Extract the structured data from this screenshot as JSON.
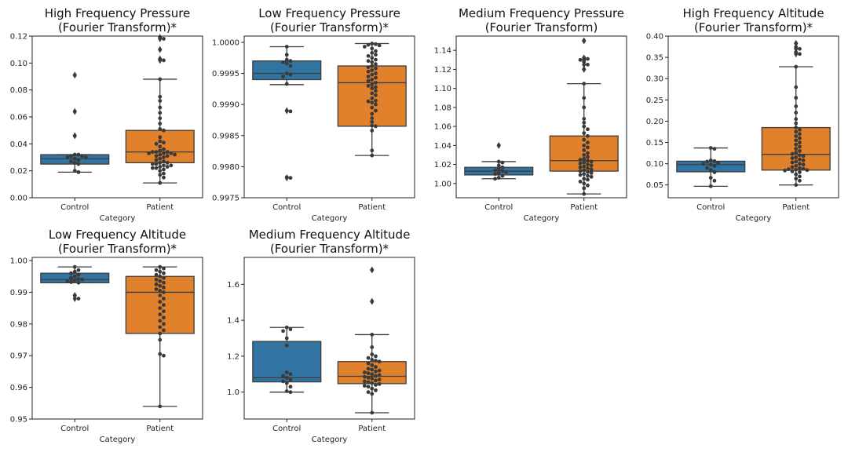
{
  "figure": {
    "background": "#ffffff"
  },
  "colors": {
    "Control": "#3274a1",
    "Patient": "#e1812c",
    "points": "#3a3a3a",
    "lines": "#3d3d3d"
  },
  "chart_data": [
    {
      "type": "box",
      "title_line1": "High Frequency Pressure",
      "title_line2": "(Fourier Transform)*",
      "xlabel": "Category",
      "ylabel": "",
      "categories": [
        "Control",
        "Patient"
      ],
      "ylim": [
        0.0,
        0.12
      ],
      "yticks": [
        "0.00",
        "0.02",
        "0.04",
        "0.06",
        "0.08",
        "0.10",
        "0.12"
      ],
      "boxes": [
        {
          "category": "Control",
          "whislo": 0.019,
          "q1": 0.025,
          "med": 0.029,
          "q3": 0.032,
          "whishi": 0.032,
          "fliers": [
            0.046,
            0.064,
            0.091
          ]
        },
        {
          "category": "Patient",
          "whislo": 0.011,
          "q1": 0.026,
          "med": 0.034,
          "q3": 0.05,
          "whishi": 0.088,
          "fliers": [
            0.102,
            0.103,
            0.11,
            0.118,
            0.119
          ]
        }
      ],
      "points": {
        "Control": [
          0.019,
          0.02,
          0.025,
          0.026,
          0.027,
          0.028,
          0.029,
          0.03,
          0.03,
          0.031,
          0.031,
          0.032,
          0.032,
          0.046,
          0.064,
          0.091
        ],
        "Patient": [
          0.011,
          0.015,
          0.017,
          0.018,
          0.02,
          0.021,
          0.022,
          0.022,
          0.023,
          0.023,
          0.024,
          0.024,
          0.025,
          0.025,
          0.026,
          0.026,
          0.027,
          0.028,
          0.029,
          0.03,
          0.031,
          0.031,
          0.032,
          0.032,
          0.033,
          0.033,
          0.033,
          0.034,
          0.034,
          0.034,
          0.035,
          0.036,
          0.038,
          0.04,
          0.041,
          0.042,
          0.045,
          0.05,
          0.051,
          0.055,
          0.059,
          0.063,
          0.067,
          0.072,
          0.075,
          0.088,
          0.102,
          0.103,
          0.11,
          0.118,
          0.119
        ]
      }
    },
    {
      "type": "box",
      "title_line1": "Low Frequency Pressure",
      "title_line2": "(Fourier Transform)*",
      "xlabel": "Category",
      "ylabel": "",
      "categories": [
        "Control",
        "Patient"
      ],
      "ylim": [
        0.9975,
        1.0001
      ],
      "yticks": [
        "0.9975",
        "0.9980",
        "0.9985",
        "0.9990",
        "0.9995",
        "1.0000"
      ],
      "boxes": [
        {
          "category": "Control",
          "whislo": 0.99932,
          "q1": 0.9994,
          "med": 0.9995,
          "q3": 0.9997,
          "whishi": 0.99993,
          "fliers": [
            0.9989,
            0.99782
          ]
        },
        {
          "category": "Patient",
          "whislo": 0.99818,
          "q1": 0.99865,
          "med": 0.99935,
          "q3": 0.99962,
          "whishi": 0.99998,
          "fliers": []
        }
      ],
      "points": {
        "Control": [
          0.99782,
          0.99783,
          0.99889,
          0.9989,
          0.99933,
          0.99945,
          0.99948,
          0.9995,
          0.99962,
          0.99966,
          0.99968,
          0.9997,
          0.99972,
          0.9998,
          0.99993
        ],
        "Patient": [
          0.99818,
          0.99826,
          0.99858,
          0.99865,
          0.99866,
          0.99872,
          0.99878,
          0.99885,
          0.9989,
          0.99895,
          0.999,
          0.99903,
          0.99905,
          0.99906,
          0.9991,
          0.99915,
          0.99918,
          0.99922,
          0.99926,
          0.99928,
          0.9993,
          0.99932,
          0.99935,
          0.99938,
          0.9994,
          0.99943,
          0.99945,
          0.99948,
          0.9995,
          0.99953,
          0.99955,
          0.99958,
          0.9996,
          0.99962,
          0.99965,
          0.99968,
          0.9997,
          0.99972,
          0.99975,
          0.99978,
          0.9998,
          0.99983,
          0.99986,
          0.9999,
          0.99993,
          0.99995,
          0.99996,
          0.99997,
          0.99998
        ]
      }
    },
    {
      "type": "box",
      "title_line1": "Medium Frequency Pressure",
      "title_line2": "(Fourier Transform)",
      "xlabel": "Category",
      "ylabel": "",
      "categories": [
        "Control",
        "Patient"
      ],
      "ylim": [
        0.985,
        1.155
      ],
      "yticks": [
        "1.00",
        "1.02",
        "1.04",
        "1.06",
        "1.08",
        "1.10",
        "1.12",
        "1.14"
      ],
      "boxes": [
        {
          "category": "Control",
          "whislo": 1.005,
          "q1": 1.009,
          "med": 1.013,
          "q3": 1.017,
          "whishi": 1.023,
          "fliers": [
            1.04
          ]
        },
        {
          "category": "Patient",
          "whislo": 0.989,
          "q1": 1.013,
          "med": 1.024,
          "q3": 1.05,
          "whishi": 1.105,
          "fliers": [
            1.12,
            1.125,
            1.128,
            1.13,
            1.131,
            1.132,
            1.15
          ]
        }
      ],
      "points": {
        "Control": [
          1.005,
          1.006,
          1.008,
          1.01,
          1.011,
          1.012,
          1.013,
          1.014,
          1.015,
          1.017,
          1.019,
          1.022,
          1.023,
          1.04
        ],
        "Patient": [
          0.989,
          0.995,
          0.998,
          1.0,
          1.002,
          1.004,
          1.005,
          1.007,
          1.008,
          1.009,
          1.01,
          1.011,
          1.012,
          1.013,
          1.014,
          1.015,
          1.016,
          1.017,
          1.018,
          1.019,
          1.02,
          1.021,
          1.022,
          1.023,
          1.024,
          1.025,
          1.026,
          1.028,
          1.03,
          1.032,
          1.035,
          1.038,
          1.04,
          1.043,
          1.046,
          1.05,
          1.053,
          1.057,
          1.06,
          1.064,
          1.068,
          1.08,
          1.09,
          1.105,
          1.12,
          1.125,
          1.128,
          1.13,
          1.131,
          1.132,
          1.15
        ]
      }
    },
    {
      "type": "box",
      "title_line1": "High Frequency Altitude",
      "title_line2": "(Fourier Transform)*",
      "xlabel": "Category",
      "ylabel": "",
      "categories": [
        "Control",
        "Patient"
      ],
      "ylim": [
        0.02,
        0.4
      ],
      "yticks": [
        "0.05",
        "0.10",
        "0.15",
        "0.20",
        "0.25",
        "0.30",
        "0.35",
        "0.40"
      ],
      "boxes": [
        {
          "category": "Control",
          "whislo": 0.047,
          "q1": 0.081,
          "med": 0.098,
          "q3": 0.106,
          "whishi": 0.137,
          "fliers": []
        },
        {
          "category": "Patient",
          "whislo": 0.05,
          "q1": 0.085,
          "med": 0.122,
          "q3": 0.185,
          "whishi": 0.328,
          "fliers": [
            0.358,
            0.362,
            0.37,
            0.374,
            0.383
          ]
        }
      ],
      "points": {
        "Control": [
          0.047,
          0.06,
          0.067,
          0.08,
          0.085,
          0.09,
          0.095,
          0.098,
          0.1,
          0.102,
          0.105,
          0.106,
          0.108,
          0.135,
          0.137
        ],
        "Patient": [
          0.05,
          0.06,
          0.065,
          0.07,
          0.075,
          0.08,
          0.082,
          0.084,
          0.085,
          0.086,
          0.087,
          0.088,
          0.09,
          0.092,
          0.095,
          0.098,
          0.1,
          0.103,
          0.105,
          0.108,
          0.11,
          0.113,
          0.115,
          0.118,
          0.12,
          0.123,
          0.126,
          0.13,
          0.135,
          0.14,
          0.145,
          0.15,
          0.155,
          0.16,
          0.165,
          0.17,
          0.175,
          0.18,
          0.185,
          0.195,
          0.205,
          0.22,
          0.235,
          0.255,
          0.28,
          0.328,
          0.358,
          0.362,
          0.37,
          0.374,
          0.383
        ]
      }
    },
    {
      "type": "box",
      "title_line1": "Low Frequency Altitude",
      "title_line2": "(Fourier Transform)*",
      "xlabel": "Category",
      "ylabel": "",
      "categories": [
        "Control",
        "Patient"
      ],
      "ylim": [
        0.95,
        1.001
      ],
      "yticks": [
        "0.95",
        "0.96",
        "0.97",
        "0.98",
        "0.99",
        "1.00"
      ],
      "boxes": [
        {
          "category": "Control",
          "whislo": 0.993,
          "q1": 0.993,
          "med": 0.994,
          "q3": 0.996,
          "whishi": 0.998,
          "fliers": [
            0.989,
            0.988
          ]
        },
        {
          "category": "Patient",
          "whislo": 0.954,
          "q1": 0.977,
          "med": 0.99,
          "q3": 0.995,
          "whishi": 0.998,
          "fliers": []
        }
      ],
      "points": {
        "Control": [
          0.988,
          0.989,
          0.993,
          0.9932,
          0.9935,
          0.9938,
          0.994,
          0.9942,
          0.9945,
          0.995,
          0.9955,
          0.996,
          0.9965,
          0.997,
          0.998
        ],
        "Patient": [
          0.954,
          0.97,
          0.9705,
          0.975,
          0.977,
          0.978,
          0.979,
          0.98,
          0.981,
          0.982,
          0.983,
          0.984,
          0.985,
          0.986,
          0.987,
          0.988,
          0.989,
          0.99,
          0.9905,
          0.991,
          0.9915,
          0.992,
          0.9925,
          0.993,
          0.9935,
          0.994,
          0.9945,
          0.995,
          0.9955,
          0.996,
          0.9965,
          0.997,
          0.9975,
          0.998
        ]
      }
    },
    {
      "type": "box",
      "title_line1": "Medium Frequency Altitude",
      "title_line2": "(Fourier Transform)*",
      "xlabel": "Category",
      "ylabel": "",
      "categories": [
        "Control",
        "Patient"
      ],
      "ylim": [
        0.85,
        1.75
      ],
      "yticks": [
        "1.0",
        "1.2",
        "1.4",
        "1.6"
      ],
      "boxes": [
        {
          "category": "Control",
          "whislo": 1.0,
          "q1": 1.057,
          "med": 1.08,
          "q3": 1.282,
          "whishi": 1.36,
          "fliers": []
        },
        {
          "category": "Patient",
          "whislo": 0.885,
          "q1": 1.047,
          "med": 1.088,
          "q3": 1.17,
          "whishi": 1.32,
          "fliers": [
            1.505,
            1.68
          ]
        }
      ],
      "points": {
        "Control": [
          1.0,
          1.005,
          1.03,
          1.05,
          1.06,
          1.07,
          1.08,
          1.09,
          1.1,
          1.11,
          1.26,
          1.3,
          1.34,
          1.35,
          1.36
        ],
        "Patient": [
          0.885,
          0.99,
          1.0,
          1.01,
          1.02,
          1.03,
          1.035,
          1.04,
          1.045,
          1.05,
          1.055,
          1.06,
          1.065,
          1.07,
          1.075,
          1.08,
          1.085,
          1.09,
          1.095,
          1.1,
          1.105,
          1.11,
          1.115,
          1.12,
          1.125,
          1.13,
          1.14,
          1.15,
          1.16,
          1.17,
          1.175,
          1.18,
          1.19,
          1.2,
          1.21,
          1.25,
          1.32,
          1.505,
          1.68
        ]
      }
    }
  ]
}
